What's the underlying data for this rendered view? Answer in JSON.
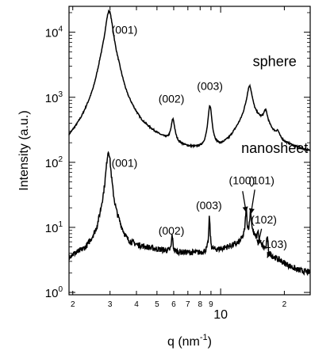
{
  "chart_data": {
    "type": "line",
    "title": "",
    "xlabel": "q (nm",
    "xlabel_sup": "-1",
    "xlabel_close": ")",
    "ylabel": "Intensity (a.u.)",
    "xscale": "log",
    "yscale": "log",
    "xlim": [
      1.92,
      26.5
    ],
    "ylim": [
      0.92,
      25000
    ],
    "grid": false,
    "legend": "none",
    "x_major_ticks": [
      {
        "value": 10,
        "label": "10"
      }
    ],
    "x_minor_ticks": [
      {
        "value": 2,
        "label": "2"
      },
      {
        "value": 3,
        "label": "3"
      },
      {
        "value": 4,
        "label": "4"
      },
      {
        "value": 5,
        "label": "5"
      },
      {
        "value": 6,
        "label": "6"
      },
      {
        "value": 7,
        "label": "7"
      },
      {
        "value": 8,
        "label": "8"
      },
      {
        "value": 9,
        "label": "9"
      },
      {
        "value": 20,
        "label": "2"
      }
    ],
    "y_major_ticks": [
      {
        "value": 1,
        "base": "10",
        "exp": "0"
      },
      {
        "value": 10,
        "base": "10",
        "exp": "1"
      },
      {
        "value": 100,
        "base": "10",
        "exp": "2"
      },
      {
        "value": 1000,
        "base": "10",
        "exp": "3"
      },
      {
        "value": 10000,
        "base": "10",
        "exp": "4"
      }
    ],
    "series": [
      {
        "name": "sphere",
        "color": "#000000",
        "baseline": [
          [
            1.92,
            90
          ],
          [
            2.2,
            140
          ],
          [
            2.5,
            320
          ],
          [
            2.7,
            1100
          ],
          [
            3.3,
            950
          ],
          [
            3.6,
            330
          ],
          [
            4.2,
            190
          ],
          [
            5,
            160
          ],
          [
            6,
            130
          ],
          [
            7,
            125
          ],
          [
            8,
            125
          ],
          [
            9,
            130
          ],
          [
            10,
            150
          ],
          [
            11,
            200
          ],
          [
            12,
            300
          ],
          [
            13,
            420
          ],
          [
            15,
            430
          ],
          [
            16.5,
            360
          ],
          [
            18,
            260
          ],
          [
            20,
            190
          ],
          [
            23,
            160
          ],
          [
            26.5,
            140
          ]
        ],
        "peaks": [
          {
            "q": 2.97,
            "height": 20000,
            "width": 0.018
          },
          {
            "q": 5.95,
            "height": 260,
            "width": 0.009
          },
          {
            "q": 8.9,
            "height": 580,
            "width": 0.009
          },
          {
            "q": 13.7,
            "height": 1050,
            "width": 0.014
          },
          {
            "q": 16.3,
            "height": 230,
            "width": 0.01
          },
          {
            "q": 18.6,
            "height": 50,
            "width": 0.008
          }
        ]
      },
      {
        "name": "nanosheet",
        "color": "#000000",
        "baseline": [
          [
            1.92,
            3.2
          ],
          [
            2.3,
            3.6
          ],
          [
            2.6,
            5
          ],
          [
            2.75,
            9
          ],
          [
            3.3,
            7
          ],
          [
            3.6,
            4.6
          ],
          [
            4.5,
            4.5
          ],
          [
            5.5,
            4.2
          ],
          [
            6.5,
            4.0
          ],
          [
            8,
            4.0
          ],
          [
            10,
            4.6
          ],
          [
            12,
            5.5
          ],
          [
            13,
            7
          ],
          [
            14,
            8
          ],
          [
            15,
            6
          ],
          [
            17,
            3.8
          ],
          [
            20,
            2.8
          ],
          [
            23,
            2.2
          ],
          [
            26.5,
            2.0
          ]
        ],
        "peaks": [
          {
            "q": 2.95,
            "height": 140,
            "width": 0.011
          },
          {
            "q": 5.9,
            "height": 3.5,
            "width": 0.003
          },
          {
            "q": 8.85,
            "height": 10,
            "width": 0.003
          },
          {
            "q": 13.2,
            "height": 12,
            "width": 0.0035
          },
          {
            "q": 13.85,
            "height": 10,
            "width": 0.004
          },
          {
            "q": 15.0,
            "height": 3.0,
            "width": 0.003
          },
          {
            "q": 16.6,
            "height": 3.0,
            "width": 0.003
          }
        ]
      }
    ],
    "annotations": [
      {
        "text": "(001)",
        "q": 3.05,
        "i": 9500,
        "anchor": "start"
      },
      {
        "text": "(002)",
        "q": 5.85,
        "i": 830,
        "anchor": "middle"
      },
      {
        "text": "(003)",
        "q": 8.9,
        "i": 1300,
        "anchor": "middle"
      },
      {
        "text": "(001)",
        "q": 3.05,
        "i": 85,
        "anchor": "start"
      },
      {
        "text": "(002)",
        "q": 5.85,
        "i": 7.8,
        "anchor": "middle"
      },
      {
        "text": "(003)",
        "q": 8.8,
        "i": 19,
        "anchor": "middle"
      },
      {
        "text": "(100)",
        "q": 12.6,
        "i": 46,
        "anchor": "middle"
      },
      {
        "text": "(101)",
        "q": 15.6,
        "i": 46,
        "anchor": "middle"
      },
      {
        "text": "(102)",
        "q": 16.0,
        "i": 11.5,
        "anchor": "middle"
      },
      {
        "text": "(103)",
        "q": 17.9,
        "i": 4.8,
        "anchor": "middle"
      }
    ],
    "arrows": [
      {
        "q1": 12.7,
        "i1": 36,
        "q2": 13.2,
        "i2": 17
      },
      {
        "q1": 14.5,
        "i1": 38,
        "q2": 13.9,
        "i2": 16
      },
      {
        "q1": 15.6,
        "i1": 9.5,
        "q2": 15.0,
        "i2": 5.3
      },
      {
        "q1": 17.1,
        "i1": 4.2,
        "q2": 16.6,
        "i2": 3.4
      }
    ],
    "series_labels": [
      {
        "text": "sphere",
        "q": 18.0,
        "i": 3000
      },
      {
        "text": "nanosheet",
        "q": 18.0,
        "i": 140
      }
    ]
  }
}
